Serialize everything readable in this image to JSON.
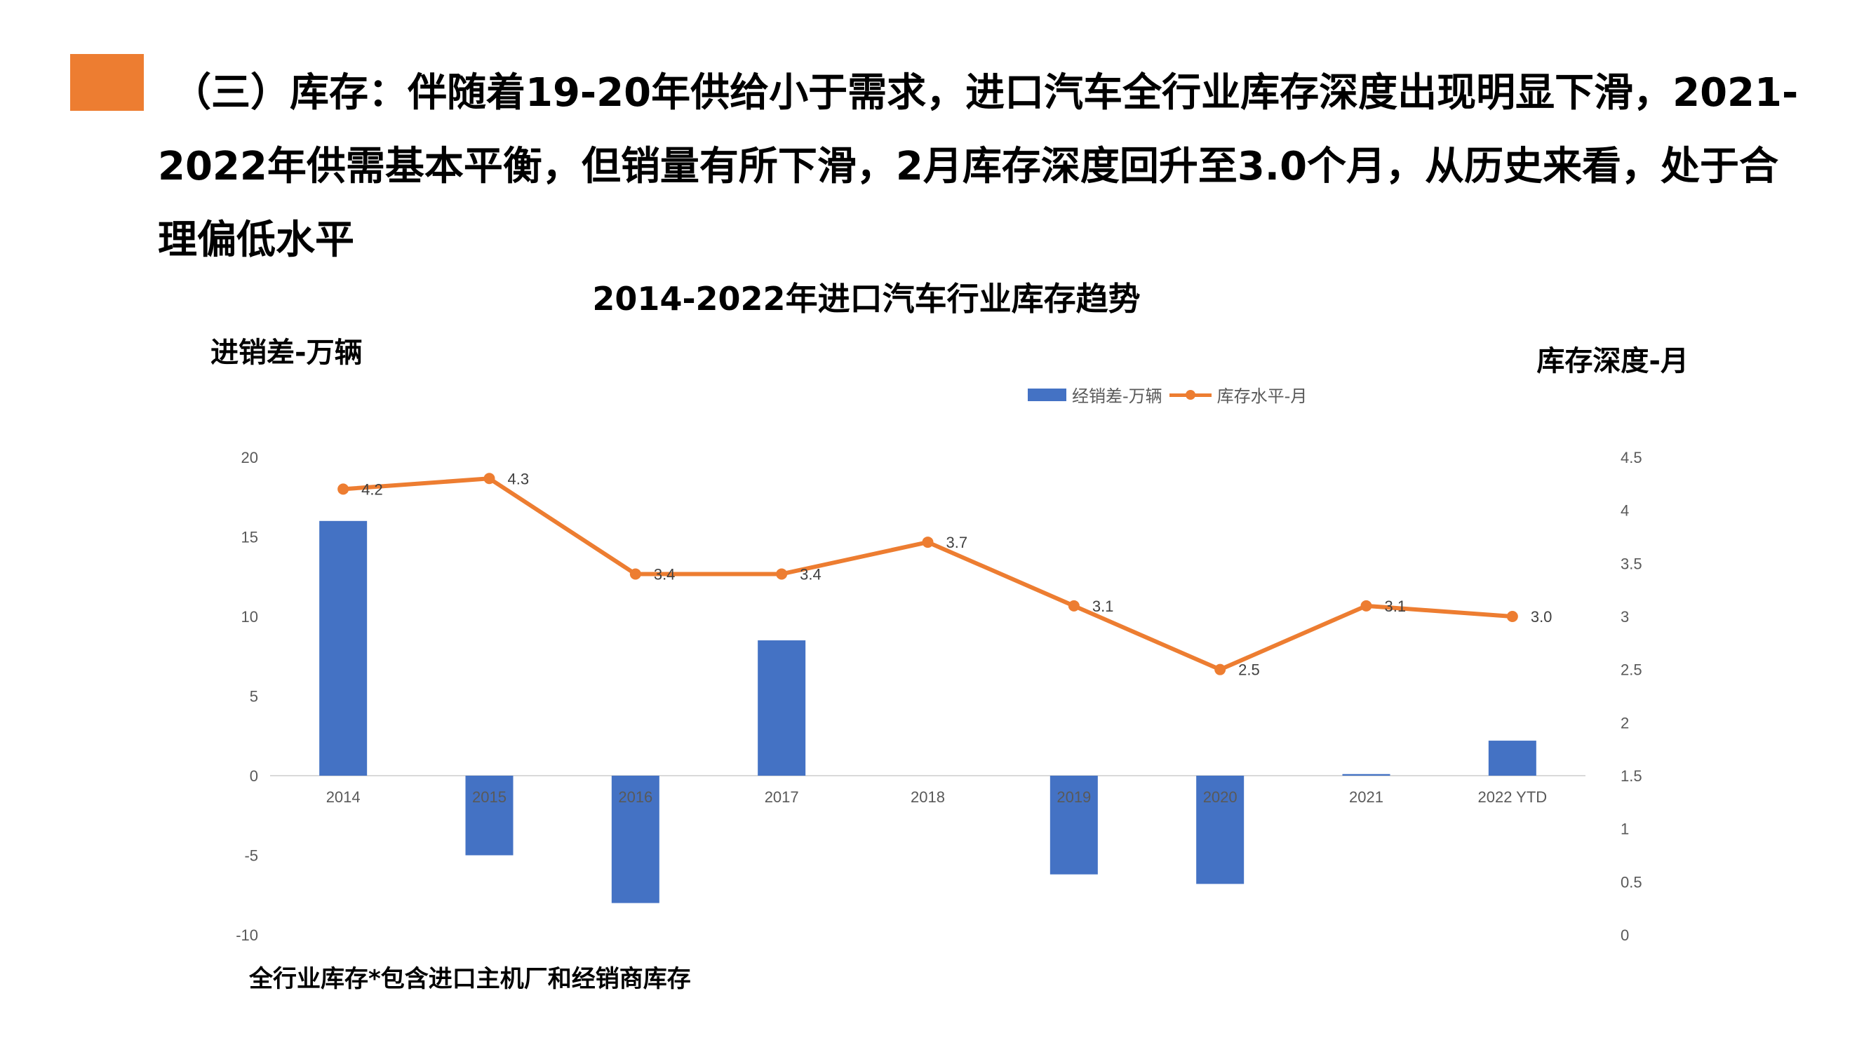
{
  "headline": "（三）库存：伴随着19-20年供给小于需求，进口汽车全行业库存深度出现明显下滑，2021-2022年供需基本平衡，但销量有所下滑，2月库存深度回升至3.0个月，从历史来看，处于合理偏低水平",
  "footnote": "全行业库存*包含进口主机厂和经销商库存",
  "colors": {
    "accent": "#ED7D31",
    "bar": "#4472C4",
    "line": "#ED7D31"
  },
  "chart_data": {
    "type": "bar",
    "title": "2014-2022年进口汽车行业库存趋势",
    "ylabel_left": "进销差-万辆",
    "ylabel_right": "库存深度-月",
    "categories": [
      "2014",
      "2015",
      "2016",
      "2017",
      "2018",
      "2019",
      "2020",
      "2021",
      "2022 YTD"
    ],
    "series": [
      {
        "name": "经销差-万辆",
        "type": "bar",
        "axis": "left",
        "values": [
          16.0,
          -5.0,
          -8.0,
          8.5,
          0.0,
          -6.2,
          -6.8,
          0.1,
          2.2
        ]
      },
      {
        "name": "库存水平-月",
        "type": "line",
        "axis": "right",
        "values": [
          4.2,
          4.3,
          3.4,
          3.4,
          3.7,
          3.1,
          2.5,
          3.1,
          3.0
        ],
        "labels": [
          "4.2",
          "4.3",
          "3.4",
          "3.4",
          "3.7",
          "3.1",
          "2.5",
          "3.1",
          "3.0"
        ]
      }
    ],
    "ylim_left": [
      -10,
      20
    ],
    "yticks_left": [
      "20",
      "15",
      "10",
      "5",
      "0",
      "-5",
      "-10"
    ],
    "ylim_right": [
      0,
      4.5
    ],
    "yticks_right": [
      "4.5",
      "4",
      "3.5",
      "3",
      "2.5",
      "2",
      "1.5",
      "1",
      "0.5",
      "0"
    ],
    "grid": false,
    "legend_position": "top-center"
  }
}
